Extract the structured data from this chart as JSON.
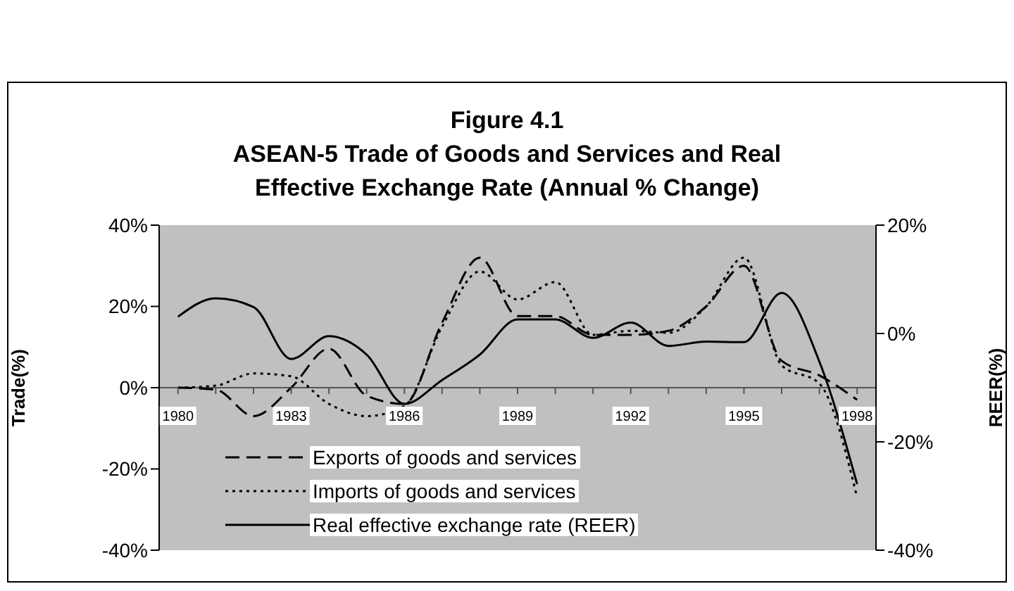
{
  "chart_data": {
    "type": "line",
    "title": "Figure 4.1\nASEAN-5 Trade of Goods and Services and Real\nEffective Exchange Rate (Annual % Change)",
    "ylabel": "Trade(%)",
    "y2label": "REER(%)",
    "x": [
      1980,
      1981,
      1982,
      1983,
      1984,
      1985,
      1986,
      1987,
      1988,
      1989,
      1990,
      1991,
      1992,
      1993,
      1994,
      1995,
      1996,
      1997,
      1998
    ],
    "xlim": [
      1979.5,
      1998.5
    ],
    "xticks": [
      1980,
      {
        "value": 1981,
        "label": null
      },
      {
        "value": 1982,
        "label": null
      },
      1983,
      {
        "value": 1984,
        "label": null
      },
      {
        "value": 1985,
        "label": null
      },
      1986,
      {
        "value": 1987,
        "label": null
      },
      {
        "value": 1988,
        "label": null
      },
      1989,
      {
        "value": 1990,
        "label": null
      },
      {
        "value": 1991,
        "label": null
      },
      1992,
      {
        "value": 1993,
        "label": null
      },
      {
        "value": 1994,
        "label": null
      },
      1995,
      {
        "value": 1996,
        "label": null
      },
      {
        "value": 1997,
        "label": null
      },
      1998
    ],
    "ylim": [
      -40,
      40
    ],
    "yticks": [
      {
        "value": -40,
        "label": "-40%"
      },
      {
        "value": -20,
        "label": "-20%"
      },
      {
        "value": 0,
        "label": "0%"
      },
      {
        "value": 20,
        "label": "20%"
      },
      {
        "value": 40,
        "label": "40%"
      }
    ],
    "y2lim": [
      -40,
      20
    ],
    "y2ticks": [
      {
        "value": -40,
        "label": "-40%"
      },
      {
        "value": -20,
        "label": "-20%"
      },
      {
        "value": 0,
        "label": "0%"
      },
      {
        "value": 20,
        "label": "20%"
      }
    ],
    "series": [
      {
        "name": "Exports of goods and services",
        "color": "#000000",
        "line_style": "dashed",
        "values": [
          0,
          -0.5,
          -7,
          0,
          9.6,
          -2,
          -4,
          16,
          32,
          17.6,
          17.6,
          13,
          13,
          14,
          20,
          30,
          6.6,
          3,
          -3
        ]
      },
      {
        "name": "Imports of goods and services",
        "color": "#000000",
        "line_style": "dotted",
        "values": [
          0,
          0.5,
          3.5,
          2.8,
          -4,
          -7,
          -4.5,
          15,
          28.6,
          21.7,
          26,
          13,
          14,
          13.5,
          20,
          32,
          5.5,
          1,
          -27
        ]
      },
      {
        "name": "Real effective exchange rate (REER)",
        "color": "#000000",
        "line_style": "solid",
        "axis": "y2",
        "values": [
          3.1,
          6.5,
          4.9,
          -4.7,
          -0.5,
          -3.9,
          -13,
          -8.6,
          -3.9,
          2.6,
          2.6,
          -0.8,
          2,
          -2.3,
          -1.5,
          -1.6,
          7.5,
          -5.2,
          -27.8
        ]
      }
    ],
    "marker": "none",
    "grid": false,
    "legend": "bottom left"
  }
}
